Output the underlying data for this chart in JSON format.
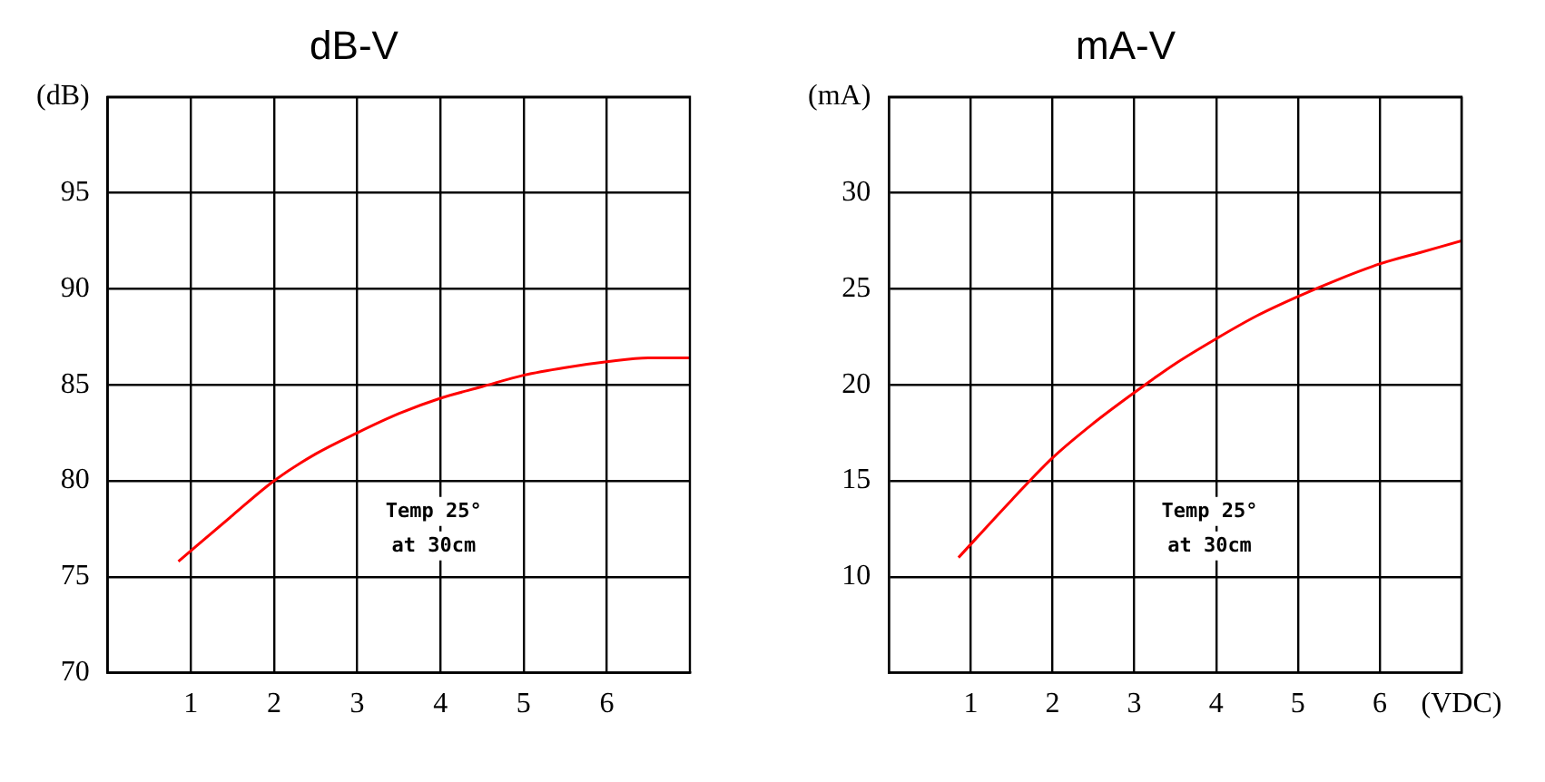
{
  "chart_data": [
    {
      "type": "line",
      "title": "dB-V",
      "x": [
        0.85,
        1.5,
        2,
        2.5,
        3,
        3.5,
        4,
        4.5,
        5,
        5.5,
        6,
        6.5,
        7
      ],
      "series": [
        {
          "color": "#ff0000",
          "values": [
            75.8,
            78.2,
            80,
            81.4,
            82.5,
            83.5,
            84.3,
            84.9,
            85.5,
            85.9,
            86.2,
            86.4,
            86.4
          ]
        }
      ],
      "xlim": [
        0,
        7
      ],
      "xticks": [
        1,
        2,
        3,
        4,
        5,
        6
      ],
      "ylim": [
        70,
        100
      ],
      "yticks": [
        70,
        75,
        80,
        85,
        90,
        95,
        {
          "value": 100,
          "label": "(dB)"
        }
      ],
      "grid": true,
      "legend": false,
      "marker": "none",
      "annotations": [
        "Temp 25°",
        "at 30cm"
      ]
    },
    {
      "type": "line",
      "title": "mA-V",
      "x": [
        0.85,
        1.5,
        2,
        2.5,
        3,
        3.5,
        4,
        4.5,
        5,
        5.5,
        6,
        6.5,
        7
      ],
      "series": [
        {
          "color": "#ff0000",
          "values": [
            11,
            14,
            16.2,
            18,
            19.6,
            21.1,
            22.4,
            23.6,
            24.6,
            25.5,
            26.3,
            26.9,
            27.5
          ]
        }
      ],
      "xlim": [
        0,
        7
      ],
      "xticks": [
        1,
        2,
        3,
        4,
        5,
        6,
        {
          "value": 7,
          "label": "(VDC)"
        }
      ],
      "ylim": [
        5,
        35
      ],
      "yticks": [
        10,
        15,
        20,
        25,
        30,
        {
          "value": 35,
          "label": "(mA)"
        }
      ],
      "grid": true,
      "legend": false,
      "marker": "none",
      "annotations": [
        "Temp 25°",
        "at 30cm"
      ]
    }
  ]
}
